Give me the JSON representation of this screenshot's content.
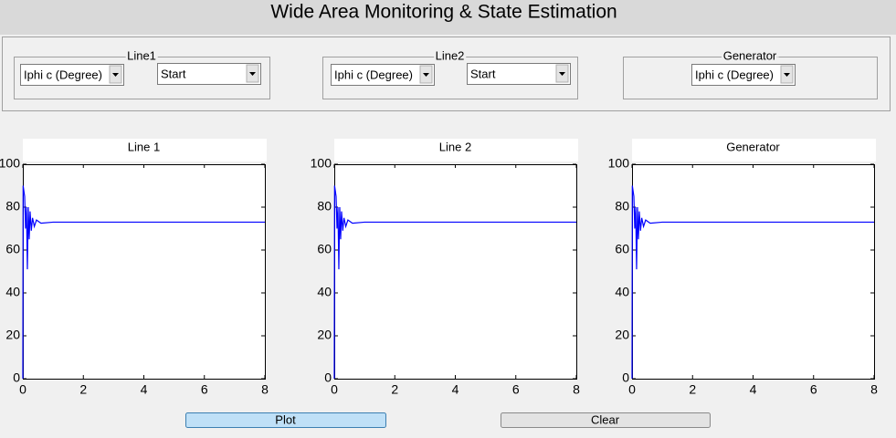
{
  "header": {
    "title": "Wide Area Monitoring & State Estimation"
  },
  "panels": [
    {
      "label": "Line1",
      "dropdowns": [
        "Iphi c (Degree)",
        "Start"
      ]
    },
    {
      "label": "Line2",
      "dropdowns": [
        "Iphi c (Degree)",
        "Start"
      ]
    },
    {
      "label": "Generator",
      "dropdowns": [
        "Iphi c (Degree)"
      ]
    }
  ],
  "chart_data": [
    {
      "type": "line",
      "title": "Line 1",
      "color": "#0000ff",
      "x": [
        0,
        0.01,
        0.03,
        0.06,
        0.09,
        0.12,
        0.15,
        0.18,
        0.21,
        0.24,
        0.28,
        0.32,
        0.38,
        0.45,
        0.6,
        1,
        2,
        4,
        6,
        8
      ],
      "values": [
        0,
        90,
        88,
        85,
        70,
        80,
        51,
        80,
        65,
        78,
        69,
        75,
        71,
        74,
        72.5,
        73,
        73,
        73,
        73,
        73
      ],
      "xlim": [
        0,
        8
      ],
      "ylim": [
        0,
        100
      ],
      "xticks": [
        0,
        2,
        4,
        6,
        8
      ],
      "yticks": [
        0,
        20,
        40,
        60,
        80,
        100
      ]
    },
    {
      "type": "line",
      "title": "Line 2",
      "color": "#0000ff",
      "x": [
        0,
        0.01,
        0.03,
        0.06,
        0.09,
        0.12,
        0.15,
        0.18,
        0.21,
        0.24,
        0.28,
        0.32,
        0.38,
        0.45,
        0.6,
        1,
        2,
        4,
        6,
        8
      ],
      "values": [
        0,
        90,
        88,
        85,
        70,
        80,
        51,
        80,
        65,
        78,
        69,
        75,
        71,
        74,
        72.5,
        73,
        73,
        73,
        73,
        73
      ],
      "xlim": [
        0,
        8
      ],
      "ylim": [
        0,
        100
      ],
      "xticks": [
        0,
        2,
        4,
        6,
        8
      ],
      "yticks": [
        0,
        20,
        40,
        60,
        80,
        100
      ]
    },
    {
      "type": "line",
      "title": "Generator",
      "color": "#0000ff",
      "x": [
        0,
        0.01,
        0.03,
        0.06,
        0.09,
        0.12,
        0.15,
        0.18,
        0.21,
        0.24,
        0.28,
        0.32,
        0.38,
        0.45,
        0.6,
        1,
        2,
        4,
        6,
        8
      ],
      "values": [
        0,
        90,
        88,
        85,
        70,
        80,
        51,
        80,
        65,
        78,
        69,
        75,
        71,
        74,
        72.5,
        73,
        73,
        73,
        73,
        73
      ],
      "xlim": [
        0,
        8
      ],
      "ylim": [
        0,
        100
      ],
      "xticks": [
        0,
        2,
        4,
        6,
        8
      ],
      "yticks": [
        0,
        20,
        40,
        60,
        80,
        100
      ]
    }
  ],
  "buttons": [
    "Plot",
    "Clear"
  ]
}
